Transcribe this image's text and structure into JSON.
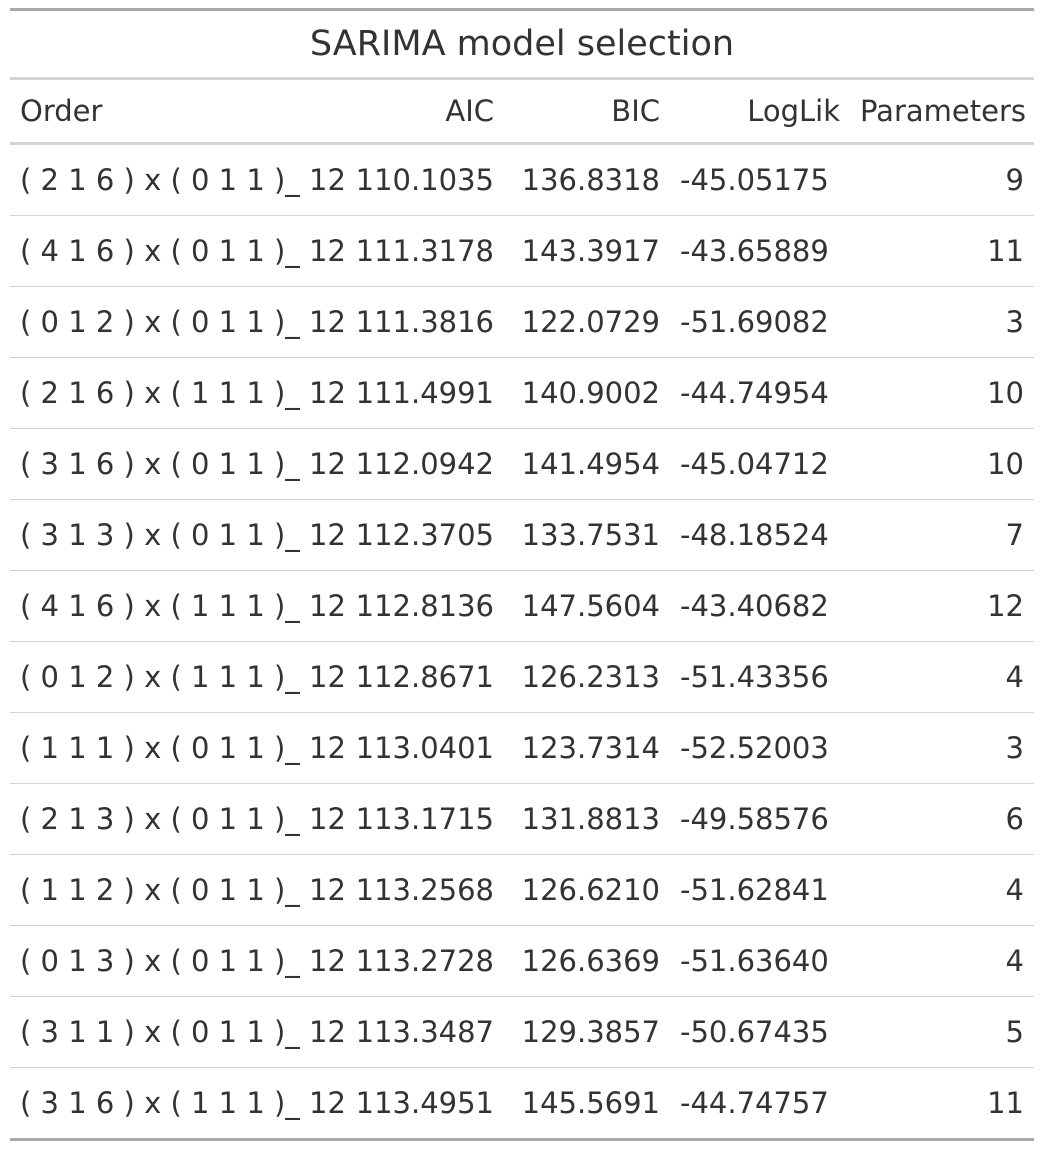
{
  "chart_data": {
    "type": "table",
    "title": "SARIMA model selection",
    "columns": [
      "Order",
      "AIC",
      "BIC",
      "LogLik",
      "Parameters"
    ],
    "rows": [
      [
        "( 2 1 6 ) x ( 0 1 1 )_ 12",
        "110.1035",
        "136.8318",
        "-45.05175",
        "9"
      ],
      [
        "( 4 1 6 ) x ( 0 1 1 )_ 12",
        "111.3178",
        "143.3917",
        "-43.65889",
        "11"
      ],
      [
        "( 0 1 2 ) x ( 0 1 1 )_ 12",
        "111.3816",
        "122.0729",
        "-51.69082",
        "3"
      ],
      [
        "( 2 1 6 ) x ( 1 1 1 )_ 12",
        "111.4991",
        "140.9002",
        "-44.74954",
        "10"
      ],
      [
        "( 3 1 6 ) x ( 0 1 1 )_ 12",
        "112.0942",
        "141.4954",
        "-45.04712",
        "10"
      ],
      [
        "( 3 1 3 ) x ( 0 1 1 )_ 12",
        "112.3705",
        "133.7531",
        "-48.18524",
        "7"
      ],
      [
        "( 4 1 6 ) x ( 1 1 1 )_ 12",
        "112.8136",
        "147.5604",
        "-43.40682",
        "12"
      ],
      [
        "( 0 1 2 ) x ( 1 1 1 )_ 12",
        "112.8671",
        "126.2313",
        "-51.43356",
        "4"
      ],
      [
        "( 1 1 1 ) x ( 0 1 1 )_ 12",
        "113.0401",
        "123.7314",
        "-52.52003",
        "3"
      ],
      [
        "( 2 1 3 ) x ( 0 1 1 )_ 12",
        "113.1715",
        "131.8813",
        "-49.58576",
        "6"
      ],
      [
        "( 1 1 2 ) x ( 0 1 1 )_ 12",
        "113.2568",
        "126.6210",
        "-51.62841",
        "4"
      ],
      [
        "( 0 1 3 ) x ( 0 1 1 )_ 12",
        "113.2728",
        "126.6369",
        "-51.63640",
        "4"
      ],
      [
        "( 3 1 1 ) x ( 0 1 1 )_ 12",
        "113.3487",
        "129.3857",
        "-50.67435",
        "5"
      ],
      [
        "( 3 1 6 ) x ( 1 1 1 )_ 12",
        "113.4951",
        "145.5691",
        "-44.74757",
        "11"
      ]
    ]
  },
  "colors": {
    "text": "#333333",
    "outer_rule": "#a8a8a8",
    "inner_rule": "#d3d3d3"
  }
}
